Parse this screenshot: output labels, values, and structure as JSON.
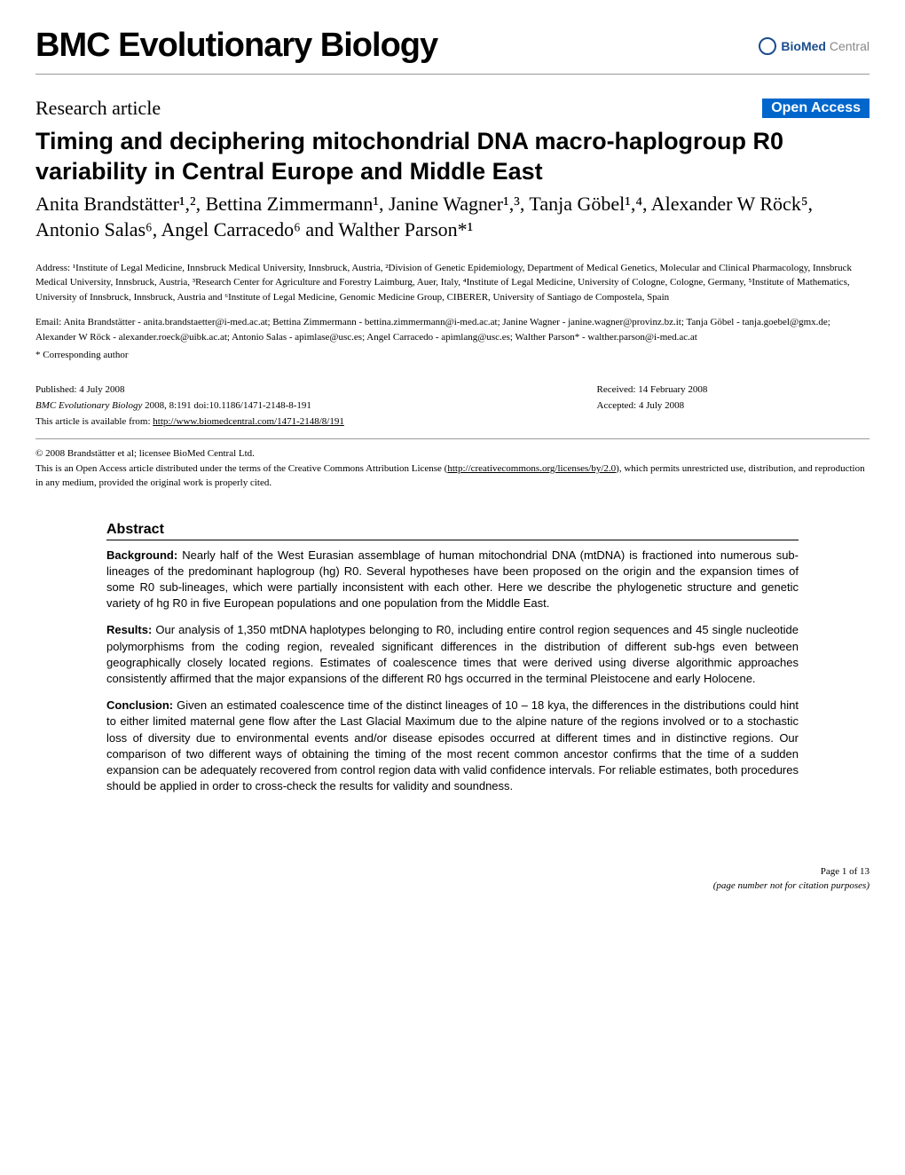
{
  "journal": {
    "name": "BMC Evolutionary Biology",
    "publisher_bold": "BioMed",
    "publisher_light": " Central"
  },
  "article": {
    "type": "Research article",
    "open_access": "Open Access",
    "title": "Timing and deciphering mitochondrial DNA macro-haplogroup R0 variability in Central Europe and Middle East",
    "authors": "Anita Brandstätter¹,², Bettina Zimmermann¹, Janine Wagner¹,³, Tanja Göbel¹,⁴, Alexander W Röck⁵, Antonio Salas⁶, Angel Carracedo⁶ and Walther Parson*¹"
  },
  "addresses": "Address: ¹Institute of Legal Medicine, Innsbruck Medical University, Innsbruck, Austria, ²Division of Genetic Epidemiology, Department of Medical Genetics, Molecular and Clinical Pharmacology, Innsbruck Medical University, Innsbruck, Austria, ³Research Center for Agriculture and Forestry Laimburg, Auer, Italy, ⁴Institute of Legal Medicine, University of Cologne, Cologne, Germany, ⁵Institute of Mathematics, University of Innsbruck, Innsbruck, Austria and ⁶Institute of Legal Medicine, Genomic Medicine Group, CIBERER, University of Santiago de Compostela, Spain",
  "emails": "Email: Anita Brandstätter - anita.brandstaetter@i-med.ac.at; Bettina Zimmermann - bettina.zimmermann@i-med.ac.at; Janine Wagner - janine.wagner@provinz.bz.it; Tanja Göbel - tanja.goebel@gmx.de; Alexander W Röck - alexander.roeck@uibk.ac.at; Antonio Salas - apimlase@usc.es; Angel Carracedo - apimlang@usc.es; Walther Parson* - walther.parson@i-med.ac.at",
  "corresponding": "* Corresponding author",
  "publication": {
    "published": "Published: 4 July 2008",
    "citation_journal": "BMC Evolutionary Biology",
    "citation_year": " 2008, ",
    "citation_vol": "8",
    "citation_page": ":191     doi:10.1186/1471-2148-8-191",
    "available_prefix": "This article is available from: ",
    "available_url": "http://www.biomedcentral.com/1471-2148/8/191",
    "received": "Received: 14 February 2008",
    "accepted": "Accepted: 4 July 2008"
  },
  "license": {
    "copyright": "© 2008 Brandstätter et al; licensee BioMed Central Ltd.",
    "text1": "This is an Open Access article distributed under the terms of the Creative Commons Attribution License (",
    "url": "http://creativecommons.org/licenses/by/2.0",
    "text2": "), which permits unrestricted use, distribution, and reproduction in any medium, provided the original work is properly cited."
  },
  "abstract": {
    "heading": "Abstract",
    "background_label": "Background: ",
    "background": "Nearly half of the West Eurasian assemblage of human mitochondrial DNA (mtDNA) is fractioned into numerous sub-lineages of the predominant haplogroup (hg) R0. Several hypotheses have been proposed on the origin and the expansion times of some R0 sub-lineages, which were partially inconsistent with each other. Here we describe the phylogenetic structure and genetic variety of hg R0 in five European populations and one population from the Middle East.",
    "results_label": "Results: ",
    "results": "Our analysis of 1,350 mtDNA haplotypes belonging to R0, including entire control region sequences and 45 single nucleotide polymorphisms from the coding region, revealed significant differences in the distribution of different sub-hgs even between geographically closely located regions. Estimates of coalescence times that were derived using diverse algorithmic approaches consistently affirmed that the major expansions of the different R0 hgs occurred in the terminal Pleistocene and early Holocene.",
    "conclusion_label": "Conclusion: ",
    "conclusion": "Given an estimated coalescence time of the distinct lineages of 10 – 18 kya, the differences in the distributions could hint to either limited maternal gene flow after the Last Glacial Maximum due to the alpine nature of the regions involved or to a stochastic loss of diversity due to environmental events and/or disease episodes occurred at different times and in distinctive regions. Our comparison of two different ways of obtaining the timing of the most recent common ancestor confirms that the time of a sudden expansion can be adequately recovered from control region data with valid confidence intervals. For reliable estimates, both procedures should be applied in order to cross-check the results for validity and soundness."
  },
  "footer": {
    "page": "Page 1 of 13",
    "note": "(page number not for citation purposes)"
  }
}
